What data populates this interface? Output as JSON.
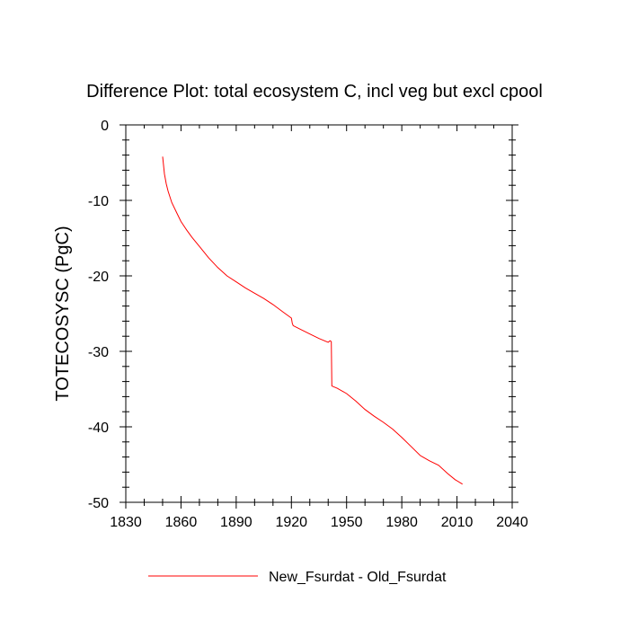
{
  "chart_data": {
    "type": "line",
    "title": "Difference Plot: total ecosystem C, incl veg but excl cpool",
    "xlabel": "",
    "ylabel": "TOTECOSYSC  (PgC)",
    "xlim": [
      1830,
      2040
    ],
    "ylim": [
      -50,
      0
    ],
    "x_ticks": [
      1830,
      1860,
      1890,
      1920,
      1950,
      1980,
      2010,
      2040
    ],
    "x_tick_labels": [
      "1830",
      "1860",
      "1890",
      "1920",
      "1950",
      "1980",
      "2010",
      "2040"
    ],
    "y_ticks": [
      0,
      -10,
      -20,
      -30,
      -40,
      -50
    ],
    "y_tick_labels": [
      "0",
      "-10",
      "-20",
      "-30",
      "-40",
      "-50"
    ],
    "grid": false,
    "legend_position": "bottom",
    "series": [
      {
        "name": "New_Fsurdat - Old_Fsurdat",
        "color": "#ff0000",
        "x": [
          1850,
          1851,
          1852,
          1853,
          1855,
          1858,
          1860,
          1863,
          1866,
          1870,
          1875,
          1880,
          1885,
          1890,
          1895,
          1900,
          1905,
          1910,
          1915,
          1920,
          1920.5,
          1921,
          1925,
          1930,
          1935,
          1940,
          1941,
          1941.7,
          1942,
          1945,
          1950,
          1955,
          1960,
          1965,
          1970,
          1975,
          1980,
          1985,
          1990,
          1995,
          2000,
          2005,
          2009,
          2013
        ],
        "y": [
          -4.2,
          -6.5,
          -7.8,
          -8.8,
          -10.3,
          -11.8,
          -12.8,
          -13.9,
          -14.9,
          -16.1,
          -17.6,
          -18.9,
          -20.0,
          -20.8,
          -21.6,
          -22.3,
          -23.0,
          -23.8,
          -24.7,
          -25.6,
          -26.3,
          -26.6,
          -27.1,
          -27.7,
          -28.3,
          -28.8,
          -28.6,
          -28.7,
          -34.6,
          -34.9,
          -35.6,
          -36.6,
          -37.7,
          -38.6,
          -39.4,
          -40.3,
          -41.4,
          -42.6,
          -43.8,
          -44.5,
          -45.1,
          -46.2,
          -47.0,
          -47.6
        ]
      }
    ]
  }
}
